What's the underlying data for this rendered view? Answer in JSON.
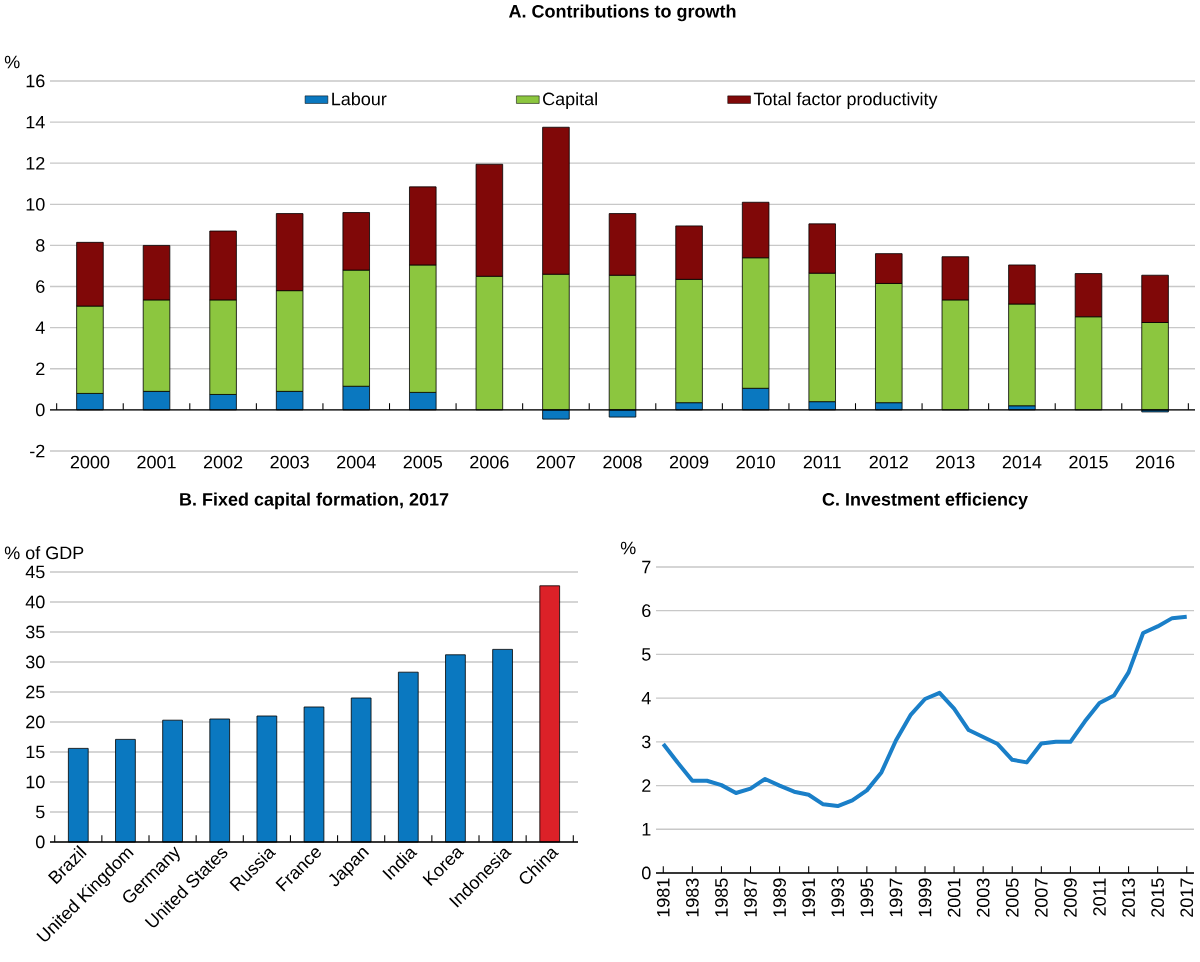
{
  "chart_data": [
    {
      "type": "bar",
      "title": "A. Contributions to growth",
      "ylabel": "%",
      "categories": [
        "2000",
        "2001",
        "2002",
        "2003",
        "2004",
        "2005",
        "2006",
        "2007",
        "2008",
        "2009",
        "2010",
        "2011",
        "2012",
        "2013",
        "2014",
        "2015",
        "2016"
      ],
      "stacked": true,
      "ylim": [
        -2,
        16
      ],
      "yticks": [
        -2,
        0,
        2,
        4,
        6,
        8,
        10,
        12,
        14,
        16
      ],
      "grid": "y",
      "legend": "top",
      "series": [
        {
          "name": "Labour",
          "color": "#0a78c0",
          "values": [
            0.8,
            0.9,
            0.75,
            0.9,
            1.15,
            0.85,
            null,
            -0.45,
            -0.35,
            0.35,
            1.05,
            0.4,
            0.35,
            null,
            0.2,
            null,
            -0.1
          ]
        },
        {
          "name": "Capital",
          "color": "#8cc63f",
          "values": [
            4.25,
            4.45,
            4.6,
            4.9,
            5.65,
            6.2,
            6.5,
            6.6,
            6.55,
            6.0,
            6.35,
            6.25,
            5.8,
            5.35,
            4.95,
            4.53,
            4.25
          ]
        },
        {
          "name": "Total factor productivity",
          "color": "#800808",
          "values": [
            3.1,
            2.65,
            3.35,
            3.75,
            2.8,
            3.8,
            5.45,
            7.15,
            3.0,
            2.6,
            2.7,
            2.4,
            1.45,
            2.1,
            1.9,
            2.1,
            2.3
          ]
        }
      ]
    },
    {
      "type": "bar",
      "title": "B. Fixed capital formation, 2017",
      "ylabel": "% of GDP",
      "categories": [
        "Brazil",
        "United Kingdom",
        "Germany",
        "United States",
        "Russia",
        "France",
        "Japan",
        "India",
        "Korea",
        "Indonesia",
        "China"
      ],
      "values": [
        15.6,
        17.1,
        20.3,
        20.5,
        21.0,
        22.5,
        24.0,
        28.3,
        31.2,
        32.1,
        42.7
      ],
      "colors": [
        "#0a78c0",
        "#0a78c0",
        "#0a78c0",
        "#0a78c0",
        "#0a78c0",
        "#0a78c0",
        "#0a78c0",
        "#0a78c0",
        "#0a78c0",
        "#0a78c0",
        "#dc2128"
      ],
      "ylim": [
        0,
        45
      ],
      "yticks": [
        0,
        5,
        10,
        15,
        20,
        25,
        30,
        35,
        40,
        45
      ],
      "grid": "y"
    },
    {
      "type": "line",
      "title": "C. Investment efficiency",
      "ylabel": "%",
      "x": [
        1981,
        1982,
        1983,
        1984,
        1985,
        1986,
        1987,
        1988,
        1989,
        1990,
        1991,
        1992,
        1993,
        1994,
        1995,
        1996,
        1997,
        1998,
        1999,
        2000,
        2001,
        2002,
        2003,
        2004,
        2005,
        2006,
        2007,
        2008,
        2009,
        2010,
        2011,
        2012,
        2013,
        2014,
        2015,
        2016,
        2017
      ],
      "values": [
        2.95,
        2.52,
        2.11,
        2.11,
        2.01,
        1.83,
        1.93,
        2.15,
        2.0,
        1.86,
        1.79,
        1.57,
        1.53,
        1.66,
        1.89,
        2.3,
        3.03,
        3.61,
        3.98,
        4.12,
        3.76,
        3.27,
        3.11,
        2.95,
        2.59,
        2.53,
        2.96,
        3.0,
        3.0,
        3.47,
        3.89,
        4.06,
        4.59,
        5.49,
        5.64,
        5.83,
        5.86
      ],
      "color": "#1a7fc8",
      "xlim": [
        1980.5,
        2017.5
      ],
      "xticks": [
        1981,
        1983,
        1985,
        1987,
        1989,
        1991,
        1993,
        1995,
        1997,
        1999,
        2001,
        2003,
        2005,
        2007,
        2009,
        2011,
        2013,
        2015,
        2017
      ],
      "ylim": [
        0,
        7
      ],
      "yticks": [
        0,
        1,
        2,
        3,
        4,
        5,
        6,
        7
      ],
      "grid": "y"
    }
  ]
}
